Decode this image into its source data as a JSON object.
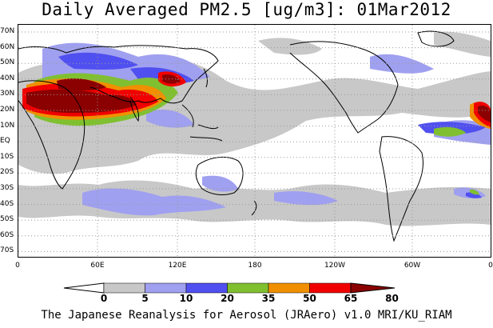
{
  "title": "Daily Averaged PM2.5 [ug/m3]: 01Mar2012",
  "footer": "The Japanese Reanalysis for Aerosol (JRAero) v1.0 MRI/KU_RIAM",
  "lat_labels": [
    "70N",
    "60N",
    "50N",
    "40N",
    "30N",
    "20N",
    "10N",
    "EQ",
    "10S",
    "20S",
    "30S",
    "40S",
    "50S",
    "60S",
    "70S"
  ],
  "lon_labels": [
    "0",
    "60E",
    "120E",
    "180",
    "120W",
    "60W",
    "0"
  ],
  "colorbar": {
    "ticks": [
      "0",
      "5",
      "10",
      "20",
      "35",
      "50",
      "65",
      "80"
    ],
    "colors": [
      "#ffffff",
      "#c8c8c8",
      "#a0a0f0",
      "#5050f0",
      "#80c030",
      "#f09000",
      "#f00000",
      "#8b0000"
    ]
  },
  "map_colors": {
    "ocean": "#ffffff",
    "coast": "#000000",
    "grid": "#999999"
  }
}
